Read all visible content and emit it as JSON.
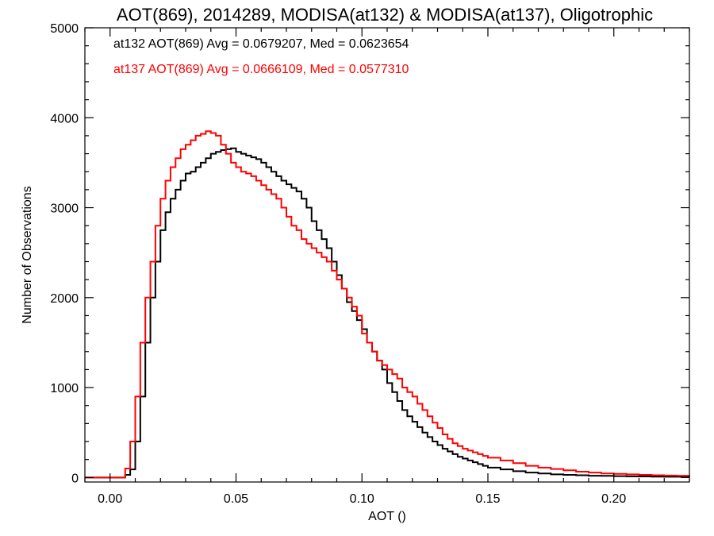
{
  "chart_data": {
    "type": "line",
    "title": "AOT(869), 2014289, MODISA(at132) & MODISA(at137), Oligotrophic",
    "xlabel": "AOT ()",
    "ylabel": "Number of Observations",
    "xlim": [
      -0.01,
      0.23
    ],
    "ylim": [
      -50,
      5000
    ],
    "xticks": [
      0.0,
      0.05,
      0.1,
      0.15,
      0.2
    ],
    "xtick_labels": [
      "0.00",
      "0.05",
      "0.10",
      "0.15",
      "0.20"
    ],
    "yticks": [
      0,
      1000,
      2000,
      3000,
      4000,
      5000
    ],
    "ytick_labels": [
      "0",
      "1000",
      "2000",
      "3000",
      "4000",
      "5000"
    ],
    "grid": false,
    "legend_placement": "top-left",
    "series": [
      {
        "name": "at132",
        "legend_text": "at132 AOT(869) Avg = 0.0679207, Med = 0.0623654",
        "color": "#000000",
        "x": [
          -0.01,
          0.0,
          0.004,
          0.006,
          0.008,
          0.01,
          0.012,
          0.014,
          0.016,
          0.018,
          0.02,
          0.022,
          0.024,
          0.026,
          0.028,
          0.03,
          0.032,
          0.034,
          0.036,
          0.038,
          0.04,
          0.042,
          0.044,
          0.046,
          0.048,
          0.05,
          0.052,
          0.054,
          0.056,
          0.058,
          0.06,
          0.062,
          0.064,
          0.066,
          0.068,
          0.07,
          0.072,
          0.074,
          0.076,
          0.078,
          0.08,
          0.082,
          0.084,
          0.086,
          0.088,
          0.09,
          0.092,
          0.094,
          0.096,
          0.098,
          0.1,
          0.102,
          0.104,
          0.106,
          0.108,
          0.11,
          0.112,
          0.114,
          0.116,
          0.118,
          0.12,
          0.122,
          0.124,
          0.126,
          0.128,
          0.13,
          0.132,
          0.134,
          0.136,
          0.138,
          0.14,
          0.142,
          0.144,
          0.146,
          0.148,
          0.15,
          0.155,
          0.16,
          0.165,
          0.17,
          0.175,
          0.18,
          0.185,
          0.19,
          0.195,
          0.2,
          0.205,
          0.21,
          0.215,
          0.22,
          0.225,
          0.23
        ],
        "y": [
          0,
          0,
          0,
          30,
          90,
          400,
          900,
          1500,
          2000,
          2400,
          2750,
          2950,
          3100,
          3200,
          3300,
          3380,
          3400,
          3450,
          3500,
          3550,
          3600,
          3620,
          3640,
          3650,
          3660,
          3620,
          3600,
          3580,
          3560,
          3540,
          3500,
          3450,
          3400,
          3350,
          3300,
          3260,
          3220,
          3180,
          3100,
          3000,
          2850,
          2750,
          2650,
          2550,
          2400,
          2250,
          2100,
          1950,
          1850,
          1750,
          1650,
          1500,
          1400,
          1300,
          1200,
          1050,
          950,
          850,
          750,
          680,
          620,
          560,
          500,
          450,
          400,
          360,
          320,
          290,
          260,
          230,
          210,
          190,
          170,
          150,
          130,
          110,
          90,
          70,
          55,
          45,
          35,
          30,
          25,
          20,
          18,
          15,
          13,
          12,
          10,
          9,
          8,
          7
        ]
      },
      {
        "name": "at137",
        "legend_text": "at137 AOT(869) Avg = 0.0666109, Med = 0.0577310",
        "color": "#ff0000",
        "x": [
          -0.01,
          0.0,
          0.004,
          0.006,
          0.008,
          0.01,
          0.012,
          0.014,
          0.016,
          0.018,
          0.02,
          0.022,
          0.024,
          0.026,
          0.028,
          0.03,
          0.032,
          0.034,
          0.036,
          0.038,
          0.04,
          0.042,
          0.044,
          0.046,
          0.048,
          0.05,
          0.052,
          0.054,
          0.056,
          0.058,
          0.06,
          0.062,
          0.064,
          0.066,
          0.068,
          0.07,
          0.072,
          0.074,
          0.076,
          0.078,
          0.08,
          0.082,
          0.084,
          0.086,
          0.088,
          0.09,
          0.092,
          0.094,
          0.096,
          0.098,
          0.1,
          0.102,
          0.104,
          0.106,
          0.108,
          0.11,
          0.112,
          0.114,
          0.116,
          0.118,
          0.12,
          0.122,
          0.124,
          0.126,
          0.128,
          0.13,
          0.132,
          0.134,
          0.136,
          0.138,
          0.14,
          0.142,
          0.144,
          0.146,
          0.148,
          0.15,
          0.155,
          0.16,
          0.165,
          0.17,
          0.175,
          0.18,
          0.185,
          0.19,
          0.195,
          0.2,
          0.205,
          0.21,
          0.215,
          0.22,
          0.225,
          0.23
        ],
        "y": [
          0,
          0,
          0,
          100,
          400,
          900,
          1500,
          2000,
          2400,
          2800,
          3100,
          3300,
          3450,
          3550,
          3650,
          3700,
          3750,
          3800,
          3820,
          3850,
          3830,
          3800,
          3700,
          3600,
          3500,
          3450,
          3400,
          3380,
          3350,
          3300,
          3250,
          3200,
          3150,
          3100,
          3000,
          2900,
          2800,
          2750,
          2650,
          2600,
          2550,
          2500,
          2450,
          2400,
          2300,
          2200,
          2100,
          2000,
          1900,
          1800,
          1600,
          1500,
          1400,
          1300,
          1250,
          1200,
          1150,
          1100,
          1000,
          950,
          900,
          820,
          750,
          680,
          610,
          550,
          480,
          430,
          380,
          350,
          320,
          300,
          280,
          260,
          240,
          220,
          190,
          160,
          130,
          110,
          95,
          80,
          65,
          55,
          45,
          40,
          35,
          30,
          25,
          22,
          20,
          18
        ]
      }
    ]
  }
}
